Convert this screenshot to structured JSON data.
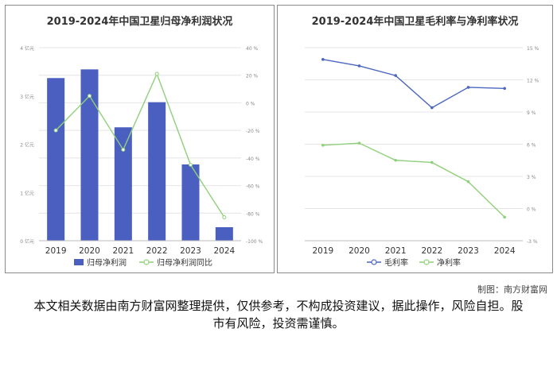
{
  "colors": {
    "bar": "#4a5fbf",
    "green_line": "#8fd07a",
    "blue_line": "#4a66bf",
    "grid": "#e4e4e4",
    "axis_text": "#888888"
  },
  "chart_data": [
    {
      "type": "bar",
      "title": "2019-2024年中国卫星归母净利润状况",
      "categories": [
        "2019",
        "2020",
        "2021",
        "2022",
        "2023",
        "2024"
      ],
      "y_ticks": [
        "4 亿元",
        "3 亿元",
        "2 亿元",
        "1 亿元",
        "0 亿元"
      ],
      "y2_ticks": [
        "40 %",
        "20 %",
        "0 %",
        "-20 %",
        "-40 %",
        "-60 %",
        "-80 %",
        "-100 %"
      ],
      "ylim": [
        0,
        4
      ],
      "y2lim": [
        -100,
        40
      ],
      "series": [
        {
          "name": "归母净利润",
          "type": "bar",
          "axis": "left",
          "values": [
            3.37,
            3.55,
            2.35,
            2.87,
            1.58,
            0.28
          ]
        },
        {
          "name": "归母净利润同比",
          "type": "line",
          "axis": "right",
          "values": [
            -20,
            5,
            -34,
            21,
            -45,
            -83
          ]
        }
      ],
      "legend": "bottom"
    },
    {
      "type": "line",
      "title": "2019-2024年中国卫星毛利率与净利率状况",
      "categories": [
        "2019",
        "2020",
        "2021",
        "2022",
        "2023",
        "2024"
      ],
      "y2_ticks": [
        "15 %",
        "12 %",
        "9 %",
        "6 %",
        "3 %",
        "0 %",
        "-3 %"
      ],
      "y2lim": [
        -3,
        15
      ],
      "series": [
        {
          "name": "毛利率",
          "axis": "right",
          "values": [
            13.9,
            13.3,
            12.4,
            9.4,
            11.3,
            11.2
          ]
        },
        {
          "name": "净利率",
          "axis": "right",
          "values": [
            5.9,
            6.1,
            4.5,
            4.3,
            2.5,
            -0.8
          ]
        }
      ],
      "legend": "bottom"
    }
  ],
  "footer": {
    "credit": "制图：南方财富网",
    "disclaimer": "本文相关数据由南方财富网整理提供，仅供参考，不构成投资建议，据此操作，风险自担。股市有风险，投资需谨慎。"
  }
}
